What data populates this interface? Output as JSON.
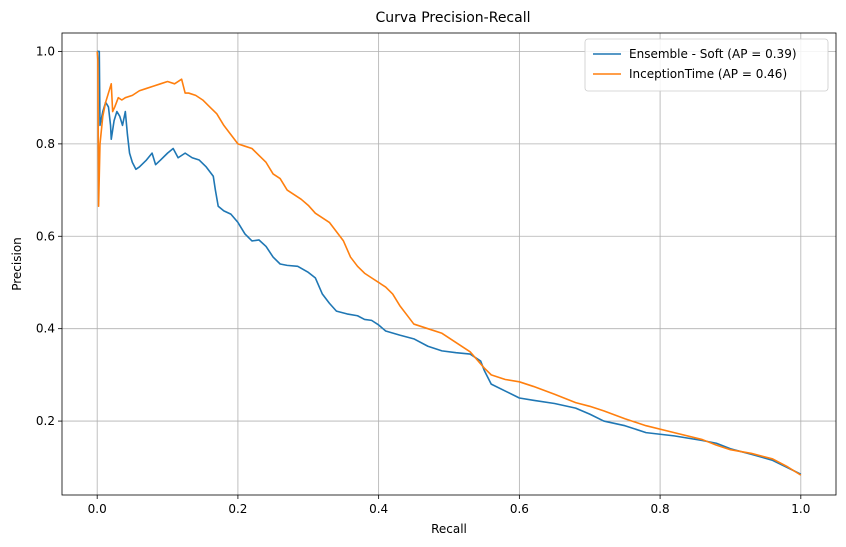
{
  "chart_data": {
    "type": "line",
    "title": "Curva Precision-Recall",
    "xlabel": "Recall",
    "ylabel": "Precision",
    "xlim": [
      -0.05,
      1.05
    ],
    "ylim": [
      0.04,
      1.04
    ],
    "xticks": [
      0.0,
      0.2,
      0.4,
      0.6,
      0.8,
      1.0
    ],
    "xtick_labels": [
      "0.0",
      "0.2",
      "0.4",
      "0.6",
      "0.8",
      "1.0"
    ],
    "yticks": [
      0.2,
      0.4,
      0.6,
      0.8,
      1.0
    ],
    "ytick_labels": [
      "0.2",
      "0.4",
      "0.6",
      "0.8",
      "1.0"
    ],
    "grid": true,
    "legend_position": "top-right",
    "series": [
      {
        "name": "Ensemble - Soft (AP = 0.39)",
        "color": "#1f77b4",
        "points": [
          [
            0.0,
            1.0
          ],
          [
            0.003,
            1.0
          ],
          [
            0.004,
            0.84
          ],
          [
            0.008,
            0.87
          ],
          [
            0.012,
            0.89
          ],
          [
            0.016,
            0.88
          ],
          [
            0.019,
            0.84
          ],
          [
            0.02,
            0.81
          ],
          [
            0.024,
            0.85
          ],
          [
            0.028,
            0.87
          ],
          [
            0.032,
            0.86
          ],
          [
            0.036,
            0.84
          ],
          [
            0.04,
            0.87
          ],
          [
            0.043,
            0.82
          ],
          [
            0.046,
            0.78
          ],
          [
            0.05,
            0.76
          ],
          [
            0.055,
            0.745
          ],
          [
            0.06,
            0.75
          ],
          [
            0.07,
            0.765
          ],
          [
            0.078,
            0.78
          ],
          [
            0.083,
            0.755
          ],
          [
            0.09,
            0.765
          ],
          [
            0.1,
            0.78
          ],
          [
            0.108,
            0.79
          ],
          [
            0.115,
            0.77
          ],
          [
            0.125,
            0.78
          ],
          [
            0.135,
            0.77
          ],
          [
            0.145,
            0.765
          ],
          [
            0.155,
            0.75
          ],
          [
            0.165,
            0.73
          ],
          [
            0.168,
            0.7
          ],
          [
            0.172,
            0.665
          ],
          [
            0.18,
            0.655
          ],
          [
            0.19,
            0.648
          ],
          [
            0.2,
            0.63
          ],
          [
            0.21,
            0.605
          ],
          [
            0.22,
            0.59
          ],
          [
            0.23,
            0.592
          ],
          [
            0.24,
            0.578
          ],
          [
            0.25,
            0.555
          ],
          [
            0.26,
            0.54
          ],
          [
            0.27,
            0.537
          ],
          [
            0.285,
            0.535
          ],
          [
            0.3,
            0.522
          ],
          [
            0.31,
            0.51
          ],
          [
            0.32,
            0.475
          ],
          [
            0.33,
            0.455
          ],
          [
            0.34,
            0.438
          ],
          [
            0.355,
            0.432
          ],
          [
            0.37,
            0.428
          ],
          [
            0.38,
            0.42
          ],
          [
            0.39,
            0.418
          ],
          [
            0.4,
            0.408
          ],
          [
            0.41,
            0.395
          ],
          [
            0.43,
            0.386
          ],
          [
            0.45,
            0.378
          ],
          [
            0.47,
            0.362
          ],
          [
            0.49,
            0.352
          ],
          [
            0.51,
            0.348
          ],
          [
            0.53,
            0.345
          ],
          [
            0.545,
            0.33
          ],
          [
            0.55,
            0.31
          ],
          [
            0.56,
            0.28
          ],
          [
            0.58,
            0.265
          ],
          [
            0.6,
            0.25
          ],
          [
            0.62,
            0.245
          ],
          [
            0.65,
            0.238
          ],
          [
            0.68,
            0.228
          ],
          [
            0.7,
            0.215
          ],
          [
            0.72,
            0.2
          ],
          [
            0.75,
            0.19
          ],
          [
            0.78,
            0.175
          ],
          [
            0.82,
            0.168
          ],
          [
            0.86,
            0.158
          ],
          [
            0.88,
            0.152
          ],
          [
            0.9,
            0.14
          ],
          [
            0.93,
            0.128
          ],
          [
            0.96,
            0.115
          ],
          [
            0.98,
            0.1
          ],
          [
            1.0,
            0.085
          ]
        ]
      },
      {
        "name": "InceptionTime (AP = 0.46)",
        "color": "#ff7f0e",
        "points": [
          [
            0.0,
            1.0
          ],
          [
            0.001,
            0.98
          ],
          [
            0.002,
            0.665
          ],
          [
            0.004,
            0.8
          ],
          [
            0.008,
            0.86
          ],
          [
            0.012,
            0.89
          ],
          [
            0.016,
            0.91
          ],
          [
            0.02,
            0.93
          ],
          [
            0.022,
            0.87
          ],
          [
            0.025,
            0.88
          ],
          [
            0.03,
            0.9
          ],
          [
            0.035,
            0.895
          ],
          [
            0.04,
            0.9
          ],
          [
            0.05,
            0.905
          ],
          [
            0.06,
            0.915
          ],
          [
            0.07,
            0.92
          ],
          [
            0.08,
            0.925
          ],
          [
            0.09,
            0.93
          ],
          [
            0.1,
            0.935
          ],
          [
            0.11,
            0.93
          ],
          [
            0.12,
            0.94
          ],
          [
            0.125,
            0.91
          ],
          [
            0.13,
            0.91
          ],
          [
            0.14,
            0.905
          ],
          [
            0.15,
            0.895
          ],
          [
            0.16,
            0.88
          ],
          [
            0.17,
            0.865
          ],
          [
            0.18,
            0.84
          ],
          [
            0.19,
            0.82
          ],
          [
            0.2,
            0.8
          ],
          [
            0.21,
            0.795
          ],
          [
            0.22,
            0.79
          ],
          [
            0.23,
            0.775
          ],
          [
            0.24,
            0.76
          ],
          [
            0.25,
            0.735
          ],
          [
            0.26,
            0.725
          ],
          [
            0.27,
            0.7
          ],
          [
            0.28,
            0.69
          ],
          [
            0.29,
            0.68
          ],
          [
            0.3,
            0.667
          ],
          [
            0.31,
            0.65
          ],
          [
            0.32,
            0.64
          ],
          [
            0.33,
            0.63
          ],
          [
            0.34,
            0.61
          ],
          [
            0.35,
            0.59
          ],
          [
            0.36,
            0.555
          ],
          [
            0.37,
            0.535
          ],
          [
            0.38,
            0.52
          ],
          [
            0.39,
            0.51
          ],
          [
            0.4,
            0.5
          ],
          [
            0.41,
            0.49
          ],
          [
            0.42,
            0.475
          ],
          [
            0.43,
            0.45
          ],
          [
            0.44,
            0.43
          ],
          [
            0.45,
            0.41
          ],
          [
            0.47,
            0.4
          ],
          [
            0.49,
            0.39
          ],
          [
            0.51,
            0.37
          ],
          [
            0.53,
            0.35
          ],
          [
            0.55,
            0.315
          ],
          [
            0.56,
            0.3
          ],
          [
            0.58,
            0.29
          ],
          [
            0.6,
            0.285
          ],
          [
            0.62,
            0.275
          ],
          [
            0.65,
            0.258
          ],
          [
            0.68,
            0.24
          ],
          [
            0.7,
            0.232
          ],
          [
            0.72,
            0.222
          ],
          [
            0.75,
            0.205
          ],
          [
            0.78,
            0.19
          ],
          [
            0.82,
            0.175
          ],
          [
            0.86,
            0.16
          ],
          [
            0.88,
            0.148
          ],
          [
            0.9,
            0.138
          ],
          [
            0.93,
            0.13
          ],
          [
            0.96,
            0.118
          ],
          [
            0.98,
            0.102
          ],
          [
            1.0,
            0.083
          ]
        ]
      }
    ]
  }
}
